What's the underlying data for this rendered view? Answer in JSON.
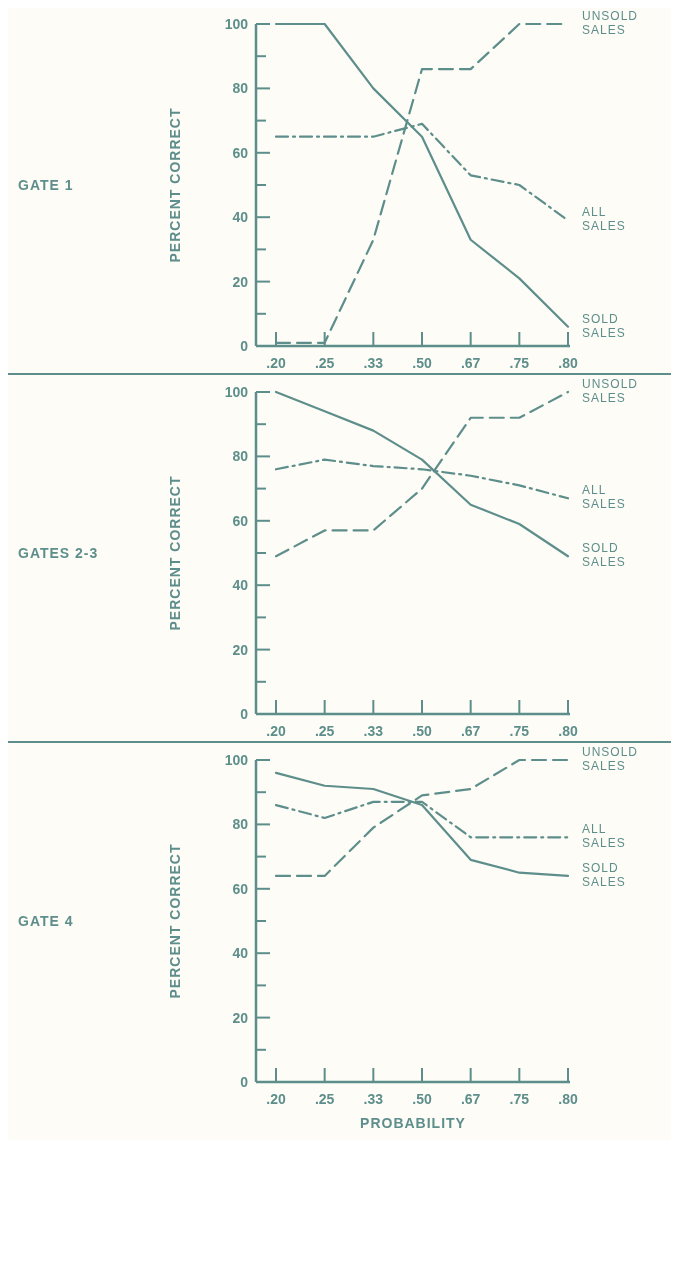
{
  "chart_data": [
    {
      "type": "line",
      "annotations": [
        "GATE 1"
      ],
      "ylabel": "PERCENT CORRECT",
      "categories": [
        ".20",
        ".25",
        ".33",
        ".50",
        ".67",
        ".75",
        ".80"
      ],
      "ylim": [
        0,
        100
      ],
      "yticks": [
        0,
        {
          "value": 10,
          "label": null
        },
        20,
        {
          "value": 30,
          "label": null
        },
        40,
        {
          "value": 50,
          "label": null
        },
        60,
        {
          "value": 70,
          "label": null
        },
        80,
        {
          "value": 90,
          "label": null
        },
        100
      ],
      "grid": false,
      "legend": false,
      "marker": "none",
      "series": [
        {
          "name": "UNSOLD SALES",
          "color": "#5e8e8b",
          "line_style": "dashed",
          "values": [
            1,
            1,
            33,
            86,
            86,
            100,
            100
          ]
        },
        {
          "name": "ALL SALES",
          "color": "#5e8e8b",
          "line_style": "dashdot",
          "values": [
            65,
            65,
            65,
            69,
            53,
            50,
            39
          ]
        },
        {
          "name": "SOLD SALES",
          "color": "#5e8e8b",
          "line_style": "solid",
          "values": [
            100,
            100,
            80,
            65,
            33,
            21,
            6
          ]
        }
      ]
    },
    {
      "type": "line",
      "annotations": [
        "GATES 2-3"
      ],
      "ylabel": "PERCENT CORRECT",
      "categories": [
        ".20",
        ".25",
        ".33",
        ".50",
        ".67",
        ".75",
        ".80"
      ],
      "ylim": [
        0,
        100
      ],
      "yticks": [
        0,
        {
          "value": 10,
          "label": null
        },
        20,
        {
          "value": 30,
          "label": null
        },
        40,
        {
          "value": 50,
          "label": null
        },
        60,
        {
          "value": 70,
          "label": null
        },
        80,
        {
          "value": 90,
          "label": null
        },
        100
      ],
      "grid": false,
      "legend": false,
      "marker": "none",
      "series": [
        {
          "name": "UNSOLD SALES",
          "color": "#5e8e8b",
          "line_style": "dashed",
          "values": [
            49,
            57,
            57,
            70,
            92,
            92,
            100
          ]
        },
        {
          "name": "ALL SALES",
          "color": "#5e8e8b",
          "line_style": "dashdot",
          "values": [
            76,
            79,
            77,
            76,
            74,
            71,
            67
          ]
        },
        {
          "name": "SOLD SALES",
          "color": "#5e8e8b",
          "line_style": "solid",
          "values": [
            100,
            94,
            88,
            79,
            65,
            59,
            49
          ]
        }
      ]
    },
    {
      "type": "line",
      "annotations": [
        "GATE 4"
      ],
      "ylabel": "PERCENT CORRECT",
      "xlabel": "PROBABILITY",
      "categories": [
        ".20",
        ".25",
        ".33",
        ".50",
        ".67",
        ".75",
        ".80"
      ],
      "ylim": [
        0,
        100
      ],
      "yticks": [
        0,
        {
          "value": 10,
          "label": null
        },
        20,
        {
          "value": 30,
          "label": null
        },
        40,
        {
          "value": 50,
          "label": null
        },
        60,
        {
          "value": 70,
          "label": null
        },
        80,
        {
          "value": 90,
          "label": null
        },
        100
      ],
      "grid": false,
      "legend": false,
      "marker": "none",
      "series": [
        {
          "name": "UNSOLD SALES",
          "color": "#5e8e8b",
          "line_style": "dashed",
          "values": [
            64,
            64,
            79,
            89,
            91,
            100,
            100
          ]
        },
        {
          "name": "ALL SALES",
          "color": "#5e8e8b",
          "line_style": "dashdot",
          "values": [
            86,
            82,
            87,
            87,
            76,
            76,
            76
          ]
        },
        {
          "name": "SOLD SALES",
          "color": "#5e8e8b",
          "line_style": "solid",
          "values": [
            96,
            92,
            91,
            86,
            69,
            65,
            64
          ]
        }
      ]
    }
  ]
}
